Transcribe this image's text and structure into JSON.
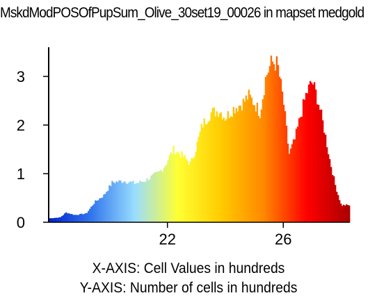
{
  "title": "MskdModPOSOfPupSum_Olive_30set19_00026 in mapset medgold",
  "xlabel": "X-AXIS: Cell Values in hundreds",
  "ylabel": "Y-AXIS: Number of cells in hundreds",
  "chart_data": {
    "type": "bar",
    "title": "MskdModPOSOfPupSum_Olive_30set19_00026 in mapset medgold",
    "xlabel": "X-AXIS: Cell Values in hundreds",
    "ylabel": "Y-AXIS: Number of cells in hundreds",
    "xlim": [
      17.9,
      28.3
    ],
    "ylim": [
      0,
      3.6
    ],
    "x_ticks": [
      22,
      26
    ],
    "y_ticks": [
      0,
      1,
      2,
      3
    ],
    "grid": false,
    "legend": "none",
    "color_ramp": [
      "#0022cc",
      "#3377ee",
      "#99ddff",
      "#ffff33",
      "#ffcc00",
      "#ff8800",
      "#ff0000",
      "#aa0000"
    ],
    "profile_x": [
      17.9,
      18.3,
      18.5,
      18.8,
      19.2,
      19.5,
      19.8,
      20.1,
      20.5,
      20.9,
      21.2,
      21.5,
      21.7,
      21.9,
      22.2,
      22.5,
      22.8,
      23.0,
      23.2,
      23.5,
      23.8,
      24.0,
      24.3,
      24.6,
      24.8,
      25.0,
      25.2,
      25.4,
      25.6,
      25.8,
      26.0,
      26.2,
      26.4,
      26.6,
      26.8,
      27.0,
      27.2,
      27.4,
      27.6,
      27.8,
      28.0,
      28.3
    ],
    "profile_y": [
      0.08,
      0.1,
      0.2,
      0.15,
      0.18,
      0.42,
      0.55,
      0.82,
      0.85,
      0.8,
      0.85,
      0.95,
      1.02,
      1.15,
      1.5,
      1.38,
      1.2,
      1.55,
      2.0,
      2.25,
      2.3,
      2.15,
      2.35,
      2.45,
      2.6,
      2.45,
      2.25,
      3.0,
      3.3,
      3.25,
      2.5,
      1.4,
      1.7,
      2.2,
      2.65,
      2.9,
      2.5,
      1.95,
      1.3,
      0.75,
      0.35,
      0.35
    ]
  }
}
